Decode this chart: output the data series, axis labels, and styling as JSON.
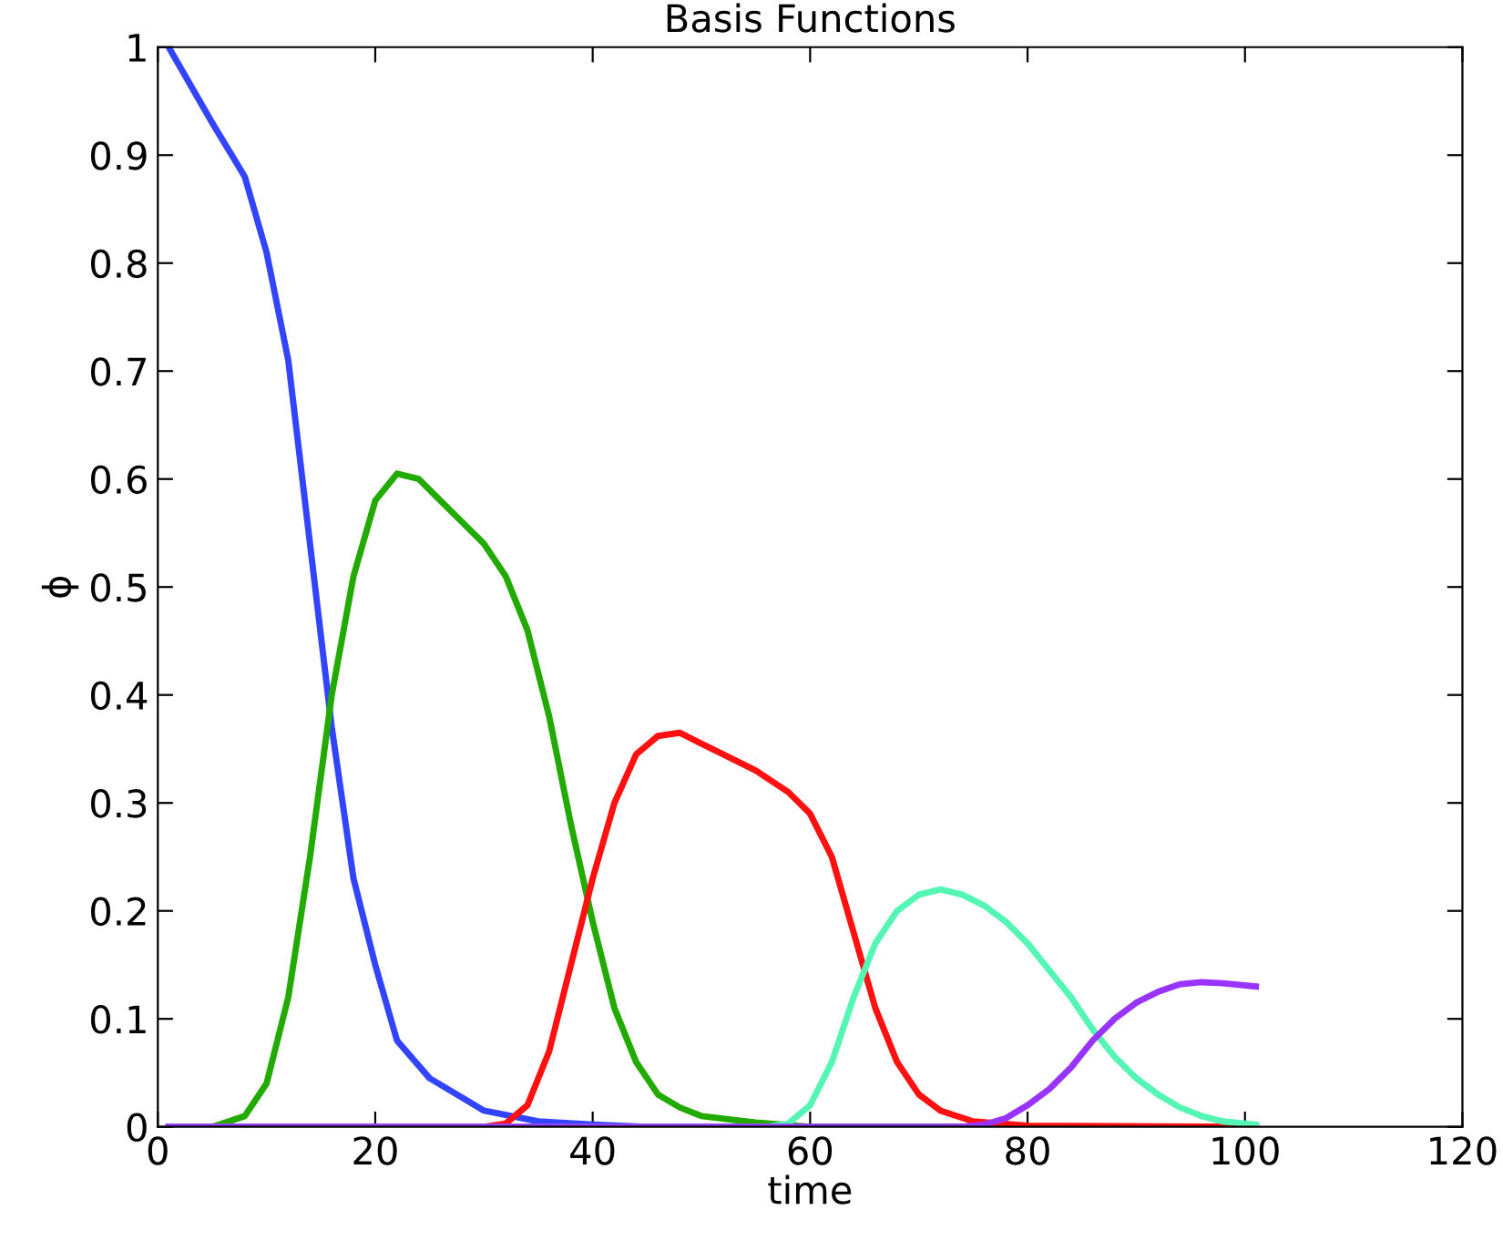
{
  "chart_data": {
    "type": "line",
    "title": "Basis Functions",
    "xlabel": "time",
    "ylabel": "ϕ",
    "xlim": [
      0,
      120
    ],
    "ylim": [
      0,
      1
    ],
    "xticks": [
      0,
      20,
      40,
      60,
      80,
      100,
      120
    ],
    "yticks": [
      0,
      0.1,
      0.2,
      0.3,
      0.4,
      0.5,
      0.6,
      0.7,
      0.8,
      0.9,
      1
    ],
    "grid": false,
    "legend": false,
    "marker": "none",
    "line_style": "solid",
    "series": [
      {
        "color": "#3344ff",
        "x": [
          1,
          5,
          8,
          10,
          12,
          14,
          16,
          18,
          20,
          22,
          25,
          30,
          35,
          40,
          45,
          101
        ],
        "values": [
          1.0,
          0.93,
          0.88,
          0.81,
          0.71,
          0.54,
          0.37,
          0.23,
          0.15,
          0.08,
          0.045,
          0.015,
          0.005,
          0.002,
          0,
          0
        ]
      },
      {
        "color": "#22aa00",
        "x": [
          1,
          5,
          8,
          10,
          12,
          14,
          16,
          18,
          20,
          22,
          24,
          26,
          28,
          30,
          32,
          34,
          36,
          38,
          40,
          42,
          44,
          46,
          48,
          50,
          55,
          60,
          101
        ],
        "values": [
          0,
          0,
          0.01,
          0.04,
          0.12,
          0.25,
          0.4,
          0.51,
          0.58,
          0.605,
          0.6,
          0.58,
          0.56,
          0.54,
          0.51,
          0.46,
          0.38,
          0.28,
          0.19,
          0.11,
          0.06,
          0.03,
          0.018,
          0.01,
          0.004,
          0,
          0
        ]
      },
      {
        "color": "#ff1111",
        "x": [
          1,
          30,
          32,
          34,
          36,
          38,
          40,
          42,
          44,
          46,
          48,
          50,
          52,
          55,
          58,
          60,
          62,
          64,
          66,
          68,
          70,
          72,
          75,
          80,
          101
        ],
        "values": [
          0,
          0,
          0.003,
          0.02,
          0.07,
          0.15,
          0.23,
          0.3,
          0.345,
          0.362,
          0.365,
          0.355,
          0.345,
          0.33,
          0.31,
          0.29,
          0.25,
          0.18,
          0.11,
          0.06,
          0.03,
          0.015,
          0.005,
          0.001,
          0
        ]
      },
      {
        "color": "#55f5b5",
        "x": [
          1,
          56,
          58,
          60,
          62,
          64,
          66,
          68,
          70,
          72,
          74,
          76,
          78,
          80,
          82,
          84,
          86,
          88,
          90,
          92,
          94,
          96,
          98,
          101
        ],
        "values": [
          0,
          0,
          0.003,
          0.02,
          0.06,
          0.12,
          0.17,
          0.2,
          0.215,
          0.22,
          0.215,
          0.205,
          0.19,
          0.17,
          0.145,
          0.12,
          0.09,
          0.065,
          0.045,
          0.03,
          0.018,
          0.01,
          0.005,
          0.002
        ]
      },
      {
        "color": "#9933ff",
        "x": [
          1,
          74,
          76,
          78,
          80,
          82,
          84,
          86,
          88,
          90,
          92,
          94,
          96,
          98,
          101
        ],
        "values": [
          0,
          0,
          0.002,
          0.008,
          0.02,
          0.035,
          0.055,
          0.08,
          0.1,
          0.115,
          0.125,
          0.132,
          0.134,
          0.133,
          0.13
        ]
      }
    ]
  }
}
